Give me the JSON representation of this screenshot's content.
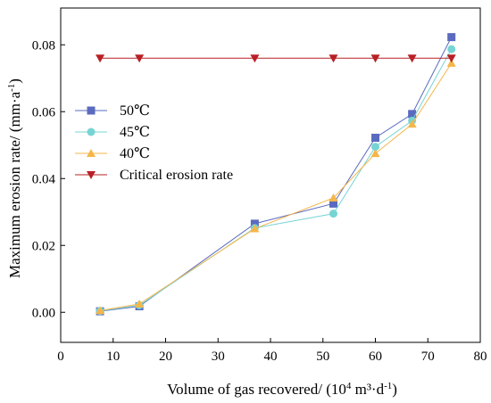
{
  "chart_data": {
    "type": "line",
    "xlabel_main": "Volume of gas recovered/ (10",
    "xlabel_sup1": "4",
    "xlabel_mid": " m³·d",
    "xlabel_sup2": "-1",
    "xlabel_end": ")",
    "ylabel_main": "Maximum erosion rate/ (mm·a",
    "ylabel_sup": "-1",
    "ylabel_end": ")",
    "xlim": [
      0,
      80
    ],
    "ylim": [
      -0.009,
      0.091
    ],
    "xticks": [
      0,
      10,
      20,
      30,
      40,
      50,
      60,
      70,
      80
    ],
    "xtick_labels": [
      "0",
      "10",
      "20",
      "30",
      "40",
      "50",
      "60",
      "70",
      "80"
    ],
    "yticks": [
      0.0,
      0.02,
      0.04,
      0.06,
      0.08
    ],
    "ytick_labels": [
      "0.00",
      "0.02",
      "0.04",
      "0.06",
      "0.08"
    ],
    "grid": false,
    "legend_position": "center-left",
    "series": [
      {
        "name": "50℃",
        "marker": "square",
        "color": "#5a6bbf",
        "x": [
          7.5,
          15,
          37,
          52,
          60,
          67,
          74.5
        ],
        "y": [
          0.0003,
          0.0018,
          0.0265,
          0.0325,
          0.0522,
          0.0593,
          0.0823
        ]
      },
      {
        "name": "45℃",
        "marker": "circle",
        "color": "#77d4d4",
        "x": [
          7.5,
          15,
          37,
          52,
          60,
          67,
          74.5
        ],
        "y": [
          0.0004,
          0.0021,
          0.0252,
          0.0295,
          0.0495,
          0.0573,
          0.0787
        ]
      },
      {
        "name": "40℃",
        "marker": "triangle-up",
        "color": "#f5b64a",
        "x": [
          7.5,
          15,
          37,
          52,
          60,
          67,
          74.5
        ],
        "y": [
          0.0005,
          0.0025,
          0.025,
          0.0342,
          0.0475,
          0.0563,
          0.0745
        ]
      },
      {
        "name": "Critical erosion rate",
        "marker": "triangle-down",
        "color": "#b82025",
        "x": [
          7.5,
          15,
          37,
          52,
          60,
          67,
          74.5
        ],
        "y": [
          0.076,
          0.076,
          0.076,
          0.076,
          0.076,
          0.076,
          0.076
        ]
      }
    ]
  }
}
